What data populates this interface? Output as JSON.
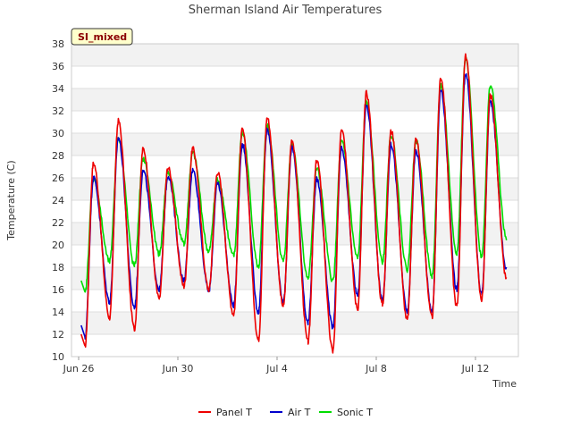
{
  "chart_data": {
    "type": "line",
    "title": "Sherman Island Air Temperatures",
    "xlabel": "Time",
    "ylabel": "Temperature (C)",
    "tag": "SI_mixed",
    "x_start": "2023-06-26",
    "x_ticks": [
      "Jun 26",
      "Jun 30",
      "Jul 4",
      "Jul 8",
      "Jul 12"
    ],
    "ylim": [
      10,
      38
    ],
    "y_ticks": [
      10,
      12,
      14,
      16,
      18,
      20,
      22,
      24,
      26,
      28,
      30,
      32,
      34,
      36,
      38
    ],
    "xlim_days": [
      0,
      17.5
    ],
    "legend_position": "bottom-center",
    "series": [
      {
        "name": "Panel T",
        "color": "#ee0000",
        "peaks": [
          27.3,
          31.1,
          28.6,
          26.9,
          28.6,
          26.5,
          30.3,
          31.4,
          29.4,
          27.6,
          30.5,
          33.6,
          30.2,
          29.5,
          35.0,
          36.9,
          33.4
        ],
        "mins": [
          10.8,
          13.5,
          12.5,
          15.2,
          16.3,
          16.0,
          13.8,
          11.5,
          14.5,
          11.3,
          10.5,
          14.3,
          14.7,
          13.3,
          13.5,
          14.5,
          15.1,
          17.0
        ]
      },
      {
        "name": "Air T",
        "color": "#0000cc",
        "peaks": [
          26.0,
          29.6,
          26.6,
          26.2,
          26.7,
          25.5,
          29.0,
          30.3,
          28.7,
          25.9,
          28.6,
          32.6,
          29.0,
          28.4,
          33.8,
          35.4,
          32.8
        ],
        "mins": [
          11.6,
          14.9,
          14.4,
          16.0,
          16.8,
          15.9,
          14.6,
          14.0,
          14.9,
          13.0,
          12.6,
          15.5,
          15.0,
          14.0,
          14.0,
          16.0,
          15.6,
          17.8
        ]
      },
      {
        "name": "Sonic T",
        "color": "#00dd00",
        "peaks": [
          25.9,
          29.6,
          27.7,
          26.5,
          28.2,
          25.9,
          30.0,
          30.7,
          29.0,
          26.8,
          29.2,
          32.8,
          29.8,
          29.3,
          34.3,
          36.6,
          34.3
        ],
        "mins": [
          15.6,
          18.5,
          18.1,
          19.2,
          20.1,
          19.4,
          19.0,
          18.0,
          18.5,
          17.0,
          16.8,
          18.8,
          18.5,
          17.8,
          17.2,
          19.3,
          19.0,
          20.6
        ]
      }
    ]
  }
}
